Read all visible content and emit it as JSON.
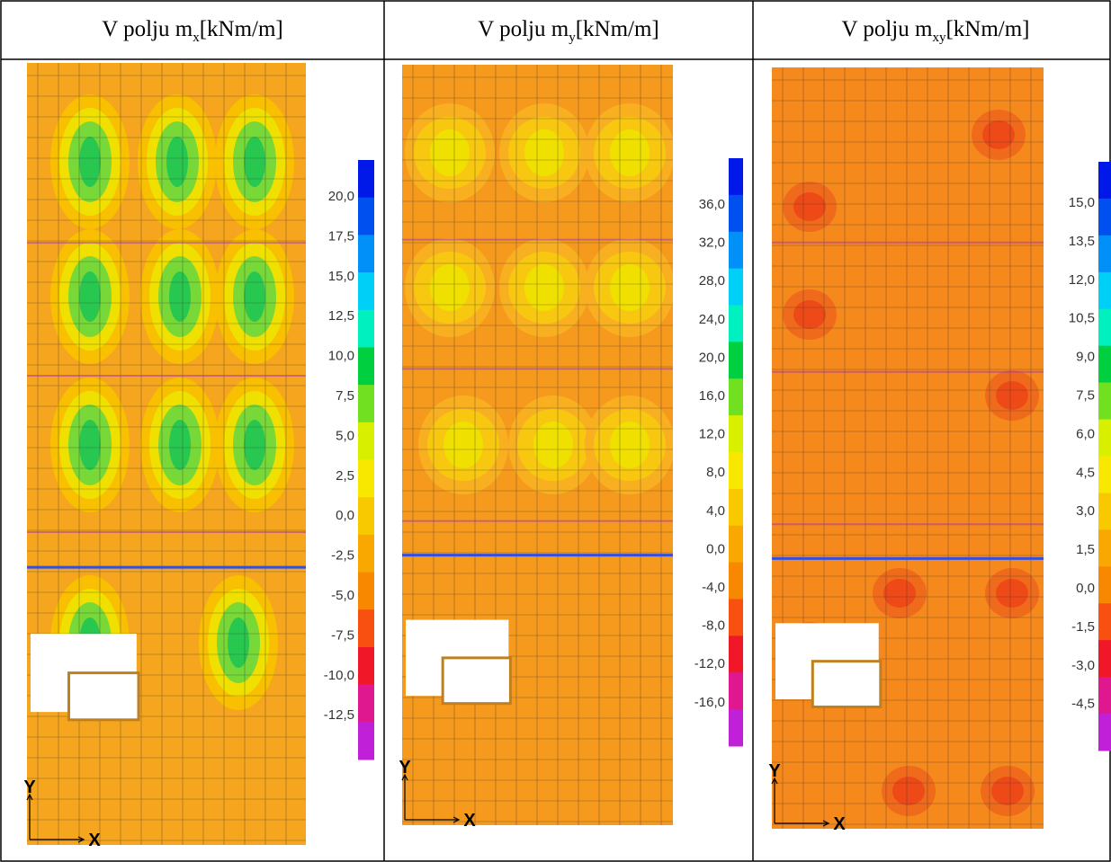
{
  "panels": [
    {
      "header": {
        "text": "V polju m",
        "subscript": "x",
        "unit": "[kNm/m]"
      },
      "legend": [
        "20,0",
        "17,5",
        "15,0",
        "12,5",
        "10,0",
        "7,5",
        "5,0",
        "2,5",
        "0,0",
        "-2,5",
        "-5,0",
        "-7,5",
        "-10,0",
        "-12,5"
      ],
      "axes": {
        "y": "Y",
        "x": "X"
      }
    },
    {
      "header": {
        "text": "V polju m",
        "subscript": "y",
        "unit": "[kNm/m]"
      },
      "legend": [
        "36,0",
        "32,0",
        "28,0",
        "24,0",
        "20,0",
        "16,0",
        "12,0",
        "8,0",
        "4,0",
        "0,0",
        "-4,0",
        "-8,0",
        "-12,0",
        "-16,0"
      ],
      "axes": {
        "y": "Y",
        "x": "X"
      }
    },
    {
      "header": {
        "text": "V polju m",
        "subscript": "xy",
        "unit": "[kNm/m]"
      },
      "legend": [
        "15,0",
        "13,5",
        "12,0",
        "10,5",
        "9,0",
        "7,5",
        "6,0",
        "4,5",
        "3,0",
        "1,5",
        "0,0",
        "-1,5",
        "-3,0",
        "-4,5"
      ],
      "axes": {
        "y": "Y",
        "x": "X"
      }
    }
  ]
}
